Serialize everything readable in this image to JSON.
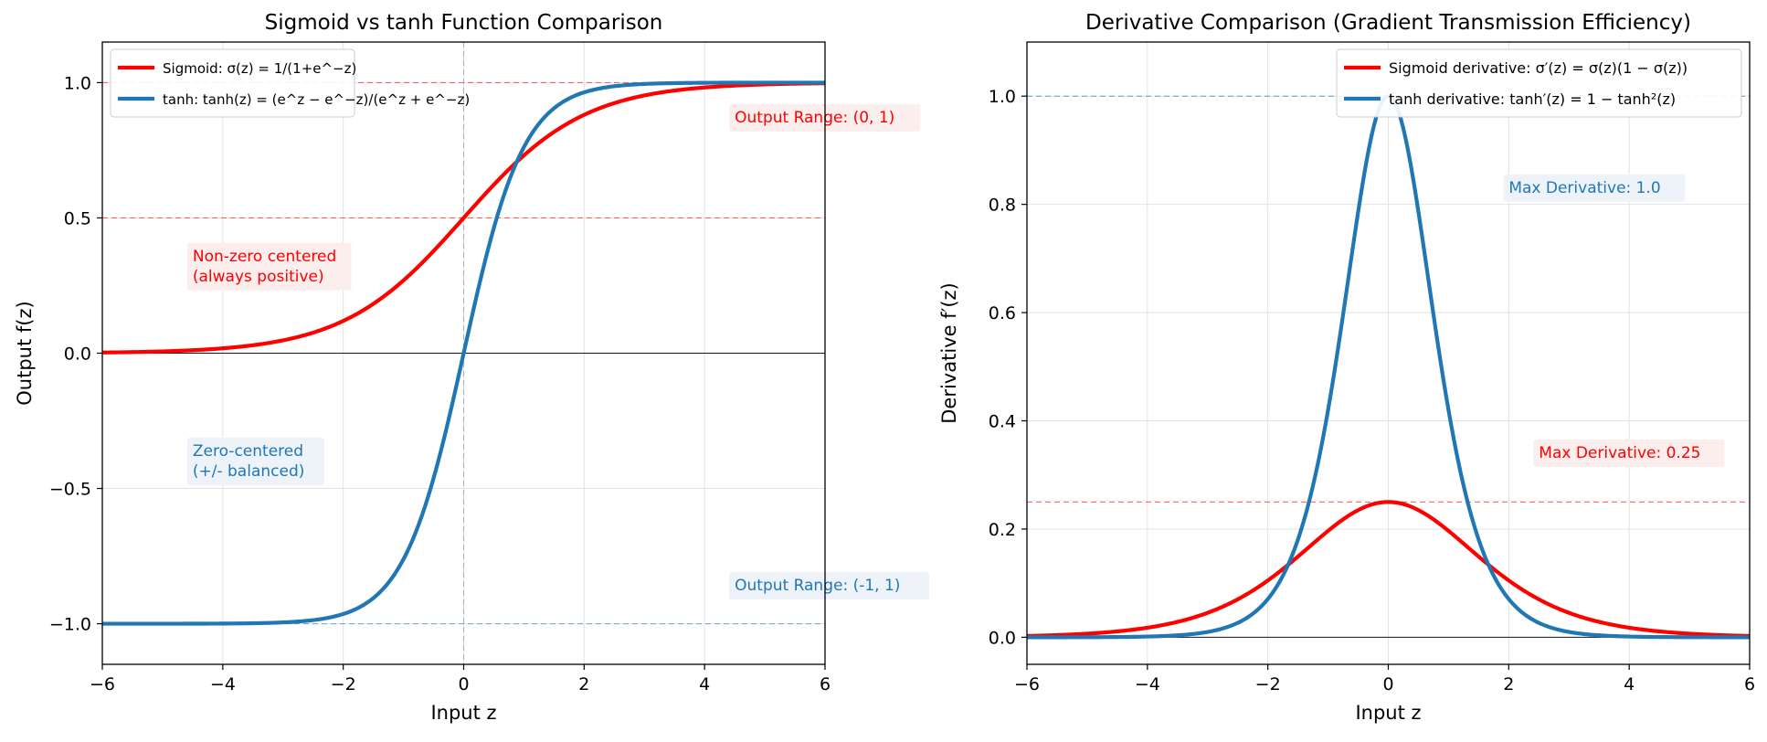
{
  "chart_data": [
    {
      "type": "line",
      "title": "Sigmoid vs tanh Function Comparison",
      "xlabel": "Input z",
      "ylabel": "Output f(z)",
      "xlim": [
        -6,
        6
      ],
      "ylim": [
        -1.15,
        1.15
      ],
      "xticks": [
        -6,
        -4,
        -2,
        0,
        2,
        4,
        6
      ],
      "yticks": [
        -1.0,
        -0.5,
        0.0,
        0.5,
        1.0
      ],
      "xtick_labels": [
        "−6",
        "−4",
        "−2",
        "0",
        "2",
        "4",
        "6"
      ],
      "ytick_labels": [
        "−1.0",
        "−0.5",
        "0.0",
        "0.5",
        "1.0"
      ],
      "grid": true,
      "legend_position": "top-left",
      "series": [
        {
          "name": "Sigmoid: σ(z) = 1/(1+e^−z)",
          "color": "#ff0000",
          "x": [
            -6,
            -5,
            -4,
            -3,
            -2,
            -1.5,
            -1,
            -0.5,
            0,
            0.5,
            1,
            1.5,
            2,
            3,
            4,
            5,
            6
          ],
          "y": [
            0.0025,
            0.0067,
            0.018,
            0.047,
            0.119,
            0.182,
            0.269,
            0.378,
            0.5,
            0.622,
            0.731,
            0.818,
            0.881,
            0.953,
            0.982,
            0.993,
            0.9975
          ]
        },
        {
          "name": "tanh: tanh(z) = (e^z − e^−z)/(e^z + e^−z)",
          "color": "#1f77b4",
          "x": [
            -6,
            -5,
            -4,
            -3,
            -2,
            -1.5,
            -1,
            -0.5,
            0,
            0.5,
            1,
            1.5,
            2,
            3,
            4,
            5,
            6
          ],
          "y": [
            -1.0,
            -0.9999,
            -0.9993,
            -0.995,
            -0.964,
            -0.905,
            -0.762,
            -0.462,
            0.0,
            0.462,
            0.762,
            0.905,
            0.964,
            0.995,
            0.9993,
            0.9999,
            1.0
          ]
        }
      ],
      "reference_lines": [
        {
          "axis": "y",
          "value": 1.0,
          "color": "#ff0000"
        },
        {
          "axis": "y",
          "value": 0.5,
          "color": "#ff0000"
        },
        {
          "axis": "y",
          "value": -1.0,
          "color": "#1f77b4"
        },
        {
          "axis": "y",
          "value": 0.0,
          "color": "#000000"
        },
        {
          "axis": "x",
          "value": 0.0,
          "color": "#888888"
        }
      ],
      "annotations": [
        {
          "text": "Output Range: (0, 1)",
          "x": 4.5,
          "y": 0.87,
          "color": "#ff0000"
        },
        {
          "text": "Non-zero centered\n(always positive)",
          "x": -4.5,
          "y": 0.32,
          "color": "#ff0000"
        },
        {
          "text": "Zero-centered\n(+/- balanced)",
          "x": -4.5,
          "y": -0.4,
          "color": "#1f77b4"
        },
        {
          "text": "Output Range: (-1, 1)",
          "x": 4.5,
          "y": -0.86,
          "color": "#1f77b4"
        }
      ]
    },
    {
      "type": "line",
      "title": "Derivative Comparison (Gradient Transmission Efficiency)",
      "xlabel": "Input z",
      "ylabel": "Derivative f′(z)",
      "xlim": [
        -6,
        6
      ],
      "ylim": [
        -0.05,
        1.1
      ],
      "xticks": [
        -6,
        -4,
        -2,
        0,
        2,
        4,
        6
      ],
      "yticks": [
        0.0,
        0.2,
        0.4,
        0.6,
        0.8,
        1.0
      ],
      "xtick_labels": [
        "−6",
        "−4",
        "−2",
        "0",
        "2",
        "4",
        "6"
      ],
      "ytick_labels": [
        "0.0",
        "0.2",
        "0.4",
        "0.6",
        "0.8",
        "1.0"
      ],
      "grid": true,
      "legend_position": "top-right",
      "series": [
        {
          "name": "Sigmoid derivative: σ′(z) = σ(z)(1 − σ(z))",
          "color": "#ff0000",
          "x": [
            -6,
            -5,
            -4,
            -3,
            -2,
            -1.5,
            -1,
            -0.5,
            0,
            0.5,
            1,
            1.5,
            2,
            3,
            4,
            5,
            6
          ],
          "y": [
            0.0025,
            0.0066,
            0.0177,
            0.0452,
            0.105,
            0.149,
            0.197,
            0.235,
            0.25,
            0.235,
            0.197,
            0.149,
            0.105,
            0.0452,
            0.0177,
            0.0066,
            0.0025
          ]
        },
        {
          "name": "tanh derivative: tanh′(z) = 1 − tanh²(z)",
          "color": "#1f77b4",
          "x": [
            -6,
            -5,
            -4,
            -3,
            -2,
            -1.5,
            -1,
            -0.5,
            0,
            0.5,
            1,
            1.5,
            2,
            3,
            4,
            5,
            6
          ],
          "y": [
            0.0,
            0.0002,
            0.0013,
            0.0099,
            0.0707,
            0.181,
            0.42,
            0.786,
            1.0,
            0.786,
            0.42,
            0.181,
            0.0707,
            0.0099,
            0.0013,
            0.0002,
            0.0
          ]
        }
      ],
      "reference_lines": [
        {
          "axis": "y",
          "value": 1.0,
          "color": "#1f77b4"
        },
        {
          "axis": "y",
          "value": 0.25,
          "color": "#ff0000"
        },
        {
          "axis": "y",
          "value": 0.0,
          "color": "#000000"
        }
      ],
      "annotations": [
        {
          "text": "Max Derivative: 1.0",
          "x": 2.0,
          "y": 0.83,
          "color": "#1f77b4"
        },
        {
          "text": "Max Derivative: 0.25",
          "x": 2.5,
          "y": 0.34,
          "color": "#ff0000"
        }
      ]
    }
  ]
}
